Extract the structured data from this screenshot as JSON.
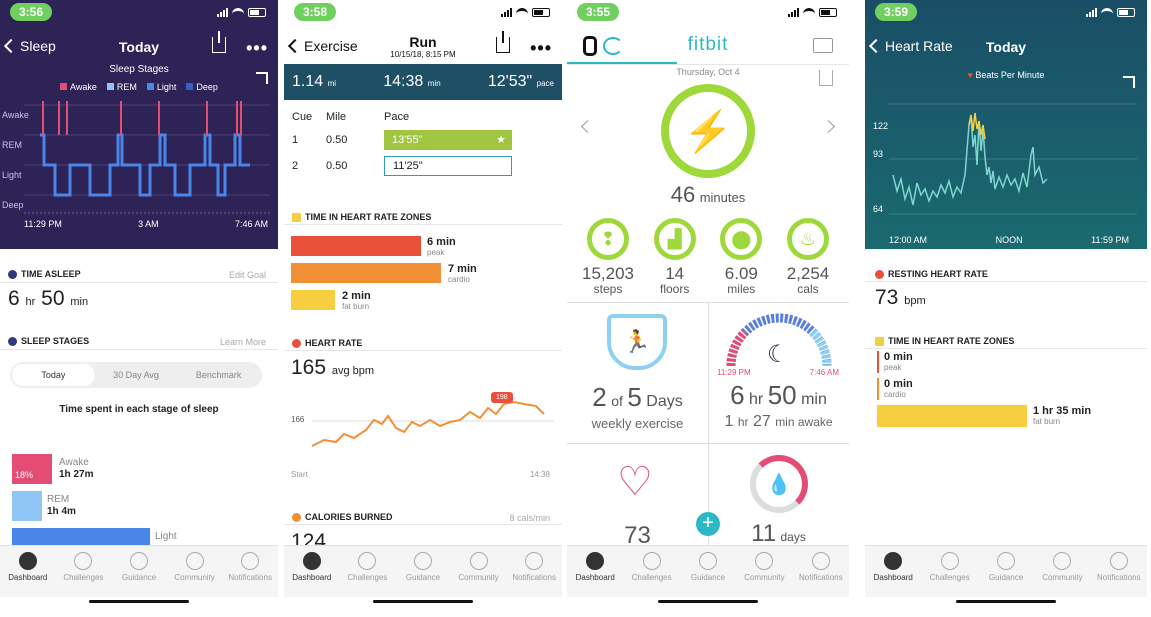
{
  "colors": {
    "sleep_bg": "#2e2356",
    "exercise_bg": "#1f4f64",
    "hr_bg": "#1a5a6a",
    "green": "#6fd05f",
    "teal": "#2bb9c5",
    "red": "#e8503a",
    "orange": "#f18f35",
    "yellow": "#f6ce3f",
    "pink": "#e44d73",
    "blue": "#4a86e8"
  },
  "status_times": [
    "3:56",
    "3:58",
    "3:55",
    "3:59"
  ],
  "tabs": [
    "Dashboard",
    "Challenges",
    "Guidance",
    "Community",
    "Notifications"
  ],
  "sleep": {
    "back": "Sleep",
    "title": "Today",
    "chart_title": "Sleep Stages",
    "legend": [
      "Awake",
      "REM",
      "Light",
      "Deep"
    ],
    "levels": [
      "Awake",
      "REM",
      "Light",
      "Deep"
    ],
    "xticks": [
      "11:29 PM",
      "3 AM",
      "7:46 AM"
    ],
    "time_asleep_label": "TIME ASLEEP",
    "edit_goal": "Edit Goal",
    "hrs": "6",
    "hr_unit": "hr",
    "mins": "50",
    "min_unit": "min",
    "stages_label": "SLEEP STAGES",
    "learn_more": "Learn More",
    "seg": [
      "Today",
      "30 Day Avg",
      "Benchmark"
    ],
    "time_spent": "Time spent in each stage of sleep",
    "bars": [
      {
        "name": "Awake",
        "pct": "18%",
        "dur": "1h 27m"
      },
      {
        "name": "REM",
        "pct": "",
        "dur": "1h 4m"
      },
      {
        "name": "Light",
        "pct": "",
        "dur": ""
      }
    ]
  },
  "exercise": {
    "back": "Exercise",
    "title": "Run",
    "subtitle": "10/15/18, 8:15 PM",
    "stats": [
      {
        "v": "1.14",
        "u": "mi"
      },
      {
        "v": "14:38",
        "u": "min"
      },
      {
        "v": "12'53\"",
        "u": "pace"
      }
    ],
    "cols": [
      "Cue",
      "Mile",
      "Pace"
    ],
    "rows": [
      {
        "cue": "1",
        "mile": "0.50",
        "pace": "13'55\""
      },
      {
        "cue": "2",
        "mile": "0.50",
        "pace": "11'25\""
      }
    ],
    "zones_label": "TIME IN HEART RATE ZONES",
    "zones": [
      {
        "v": "6 min",
        "l": "peak"
      },
      {
        "v": "7 min",
        "l": "cardio"
      },
      {
        "v": "2 min",
        "l": "fat burn"
      }
    ],
    "hr_label": "HEART RATE",
    "avg": "165",
    "avg_unit": "avg bpm",
    "y_tick": "166",
    "max": "198",
    "start": "Start",
    "end": "14:38",
    "cal_label": "CALORIES BURNED",
    "cal_rate": "8 cals/min",
    "cal_partial": "124"
  },
  "today": {
    "brand": "fitbit",
    "date": "Thursday, Oct 4",
    "minutes": "46",
    "minutes_label": "minutes",
    "stats": [
      {
        "v": "15,203",
        "l": "steps"
      },
      {
        "v": "14",
        "l": "floors"
      },
      {
        "v": "6.09",
        "l": "miles"
      },
      {
        "v": "2,254",
        "l": "cals"
      }
    ],
    "exercise_days": "2",
    "of": "of",
    "exercise_goal": "5",
    "days": "Days",
    "weekly": "weekly exercise",
    "sleep_start": "11:29 PM",
    "sleep_end": "7:46 AM",
    "sleep_h": "6",
    "sleep_hr": "hr",
    "sleep_m": "50",
    "sleep_min": "min",
    "awake_h": "1",
    "awake_hr": "hr",
    "awake_m": "27",
    "awake_lbl": "min awake",
    "hr_partial": "73",
    "water_partial": "11",
    "water_days": "days"
  },
  "heartrate": {
    "back": "Heart Rate",
    "title": "Today",
    "chart_title": "Beats Per Minute",
    "yticks": [
      "122",
      "93",
      "64"
    ],
    "xticks": [
      "12:00 AM",
      "NOON",
      "11:59 PM"
    ],
    "resting_label": "RESTING HEART RATE",
    "resting": "73",
    "resting_unit": "bpm",
    "zones_label": "TIME IN HEART RATE ZONES",
    "zones": [
      {
        "v": "0 min",
        "l": "peak"
      },
      {
        "v": "0 min",
        "l": "cardio"
      },
      {
        "v": "1 hr 35 min",
        "l": "fat burn"
      }
    ]
  }
}
